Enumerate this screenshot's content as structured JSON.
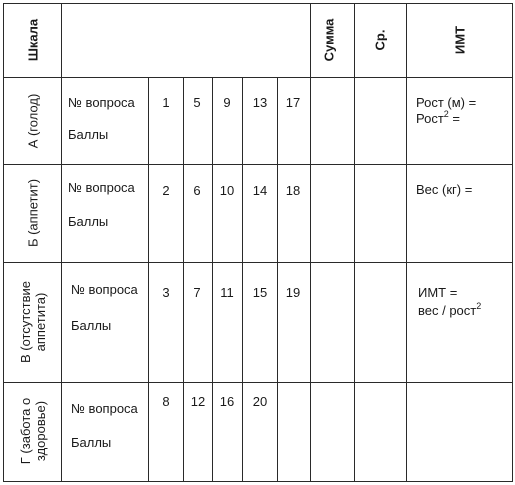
{
  "header": {
    "scale": "Шкала",
    "sum": "Сумма",
    "avg": "Ср.",
    "bmi": "ИМТ"
  },
  "rows": [
    {
      "scale_name": "А (голод)",
      "question_label": "№ вопроса",
      "points_label": "Баллы",
      "questions": [
        "1",
        "5",
        "9",
        "13",
        "17"
      ],
      "bmi_note_line1": "Рост (м) =",
      "bmi_note_line2": "Рост",
      "bmi_note_line2_sup": "2",
      "bmi_note_line2_tail": " ="
    },
    {
      "scale_name": "Б (аппетит)",
      "question_label": "№ вопроса",
      "points_label": "Баллы",
      "questions": [
        "2",
        "6",
        "10",
        "14",
        "18"
      ],
      "bmi_note_line1": "Вес (кг) ="
    },
    {
      "scale_name_line1": "В (отсутствие",
      "scale_name_line2": "аппетита)",
      "question_label": "№ вопроса",
      "points_label": "Баллы",
      "questions": [
        "3",
        "7",
        "11",
        "15",
        "19"
      ],
      "bmi_note_line1": "ИМТ =",
      "bmi_note_line2": "вес / рост",
      "bmi_note_line2_sup": "2"
    },
    {
      "scale_name_line1": "Г (забота о",
      "scale_name_line2": "здоровье)",
      "question_label": "№ вопроса",
      "points_label": "Баллы",
      "questions": [
        "8",
        "12",
        "16",
        "20"
      ]
    }
  ]
}
